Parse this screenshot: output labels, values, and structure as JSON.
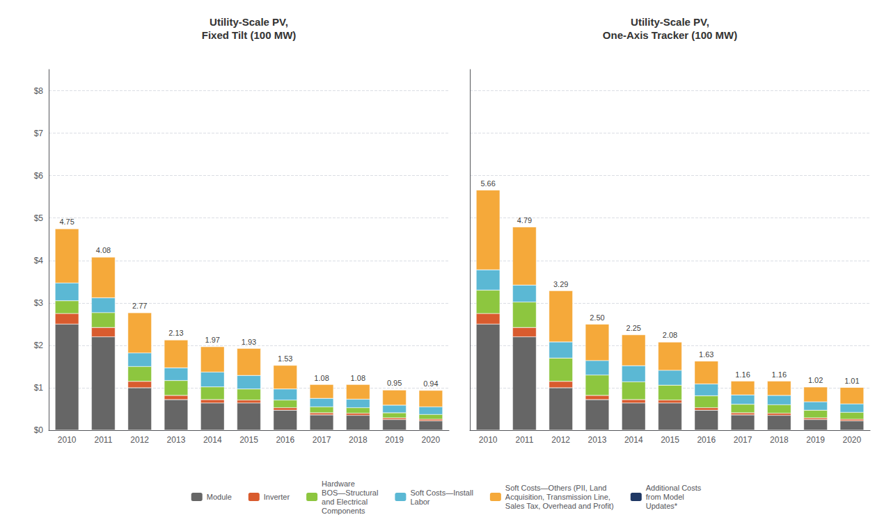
{
  "chart_data": [
    {
      "type": "bar",
      "title": "Utility-Scale PV,\nFixed Tilt (100 MW)",
      "categories": [
        "2010",
        "2011",
        "2012",
        "2013",
        "2014",
        "2015",
        "2016",
        "2017",
        "2018",
        "2019",
        "2020"
      ],
      "series": [
        {
          "name": "Module",
          "color": "#666666",
          "values": [
            2.5,
            2.2,
            1.0,
            0.72,
            0.64,
            0.64,
            0.47,
            0.36,
            0.35,
            0.25,
            0.22
          ]
        },
        {
          "name": "Inverter",
          "color": "#D95B2E",
          "values": [
            0.25,
            0.22,
            0.15,
            0.1,
            0.08,
            0.07,
            0.06,
            0.05,
            0.05,
            0.04,
            0.04
          ]
        },
        {
          "name": "Hardware\nBOS—Structural\nand Electrical\nComponents",
          "color": "#8DC63F",
          "values": [
            0.3,
            0.35,
            0.35,
            0.35,
            0.3,
            0.26,
            0.18,
            0.14,
            0.13,
            0.12,
            0.11
          ]
        },
        {
          "name": "Soft Costs—Install\nLabor",
          "color": "#5BB8D4",
          "values": [
            0.42,
            0.35,
            0.32,
            0.3,
            0.35,
            0.32,
            0.26,
            0.2,
            0.2,
            0.18,
            0.18
          ]
        },
        {
          "name": "Soft Costs—Others (PII, Land\nAcquisition, Transmission Line,\nSales Tax, Overhead and Profit)",
          "color": "#F5A93A",
          "values": [
            1.28,
            0.96,
            0.95,
            0.66,
            0.6,
            0.64,
            0.56,
            0.33,
            0.35,
            0.36,
            0.39
          ]
        },
        {
          "name": "Additional Costs\nfrom Model\nUpdates*",
          "color": "#1F3864",
          "values": [
            0.0,
            0.0,
            0.0,
            0.0,
            0.0,
            0.0,
            0.0,
            0.0,
            0.0,
            0.0,
            0.0
          ]
        }
      ],
      "totals": [
        4.75,
        4.08,
        2.77,
        2.13,
        1.97,
        1.93,
        1.53,
        1.08,
        1.08,
        0.95,
        0.94
      ],
      "total_labels": [
        "4.75",
        "4.08",
        "2.77",
        "2.13",
        "1.97",
        "1.93",
        "1.53",
        "1.08",
        "1.08",
        "0.95",
        "0.94"
      ],
      "ylim": [
        0,
        8.5
      ],
      "yticks": [
        {
          "value": 0,
          "label": "$0"
        },
        {
          "value": 1,
          "label": "$1"
        },
        {
          "value": 2,
          "label": "$2"
        },
        {
          "value": 3,
          "label": "$3"
        },
        {
          "value": 4,
          "label": "$4"
        },
        {
          "value": 5,
          "label": "$5"
        },
        {
          "value": 6,
          "label": "$6"
        },
        {
          "value": 7,
          "label": "$7"
        },
        {
          "value": 8,
          "label": "$8"
        }
      ],
      "grid": true,
      "stacked": true,
      "legend": "bottom"
    },
    {
      "type": "bar",
      "title": "Utility-Scale PV,\nOne-Axis Tracker (100 MW)",
      "categories": [
        "2010",
        "2011",
        "2012",
        "2013",
        "2014",
        "2015",
        "2016",
        "2017",
        "2018",
        "2019",
        "2020"
      ],
      "series": [
        {
          "name": "Module",
          "color": "#666666",
          "values": [
            2.5,
            2.2,
            1.0,
            0.72,
            0.64,
            0.64,
            0.47,
            0.36,
            0.35,
            0.25,
            0.22
          ]
        },
        {
          "name": "Inverter",
          "color": "#D95B2E",
          "values": [
            0.25,
            0.22,
            0.15,
            0.1,
            0.08,
            0.07,
            0.06,
            0.05,
            0.05,
            0.04,
            0.04
          ]
        },
        {
          "name": "Hardware\nBOS—Structural\nand Electrical\nComponents",
          "color": "#8DC63F",
          "values": [
            0.55,
            0.6,
            0.55,
            0.48,
            0.42,
            0.35,
            0.28,
            0.2,
            0.2,
            0.18,
            0.16
          ]
        },
        {
          "name": "Soft Costs—Install\nLabor",
          "color": "#5BB8D4",
          "values": [
            0.48,
            0.4,
            0.38,
            0.34,
            0.38,
            0.35,
            0.28,
            0.22,
            0.22,
            0.2,
            0.2
          ]
        },
        {
          "name": "Soft Costs—Others (PII, Land\nAcquisition, Transmission Line,\nSales Tax, Overhead and Profit)",
          "color": "#F5A93A",
          "values": [
            1.88,
            1.37,
            1.21,
            0.86,
            0.73,
            0.67,
            0.54,
            0.33,
            0.34,
            0.35,
            0.39
          ]
        },
        {
          "name": "Additional Costs\nfrom Model\nUpdates*",
          "color": "#1F3864",
          "values": [
            0.0,
            0.0,
            0.0,
            0.0,
            0.0,
            0.0,
            0.0,
            0.0,
            0.0,
            0.0,
            0.0
          ]
        }
      ],
      "totals": [
        5.66,
        4.79,
        3.29,
        2.5,
        2.25,
        2.08,
        1.63,
        1.16,
        1.16,
        1.02,
        1.01
      ],
      "total_labels": [
        "5.66",
        "4.79",
        "3.29",
        "2.50",
        "2.25",
        "2.08",
        "1.63",
        "1.16",
        "1.16",
        "1.02",
        "1.01"
      ],
      "ylim": [
        0,
        8.5
      ],
      "yticks": [
        {
          "value": 0,
          "label": "$0"
        },
        {
          "value": 1,
          "label": "$1"
        },
        {
          "value": 2,
          "label": "$2"
        },
        {
          "value": 3,
          "label": "$3"
        },
        {
          "value": 4,
          "label": "$4"
        },
        {
          "value": 5,
          "label": "$5"
        },
        {
          "value": 6,
          "label": "$6"
        },
        {
          "value": 7,
          "label": "$7"
        },
        {
          "value": 8,
          "label": "$8"
        }
      ],
      "grid": true,
      "stacked": true,
      "legend": "bottom",
      "tick_labels": "x"
    }
  ]
}
